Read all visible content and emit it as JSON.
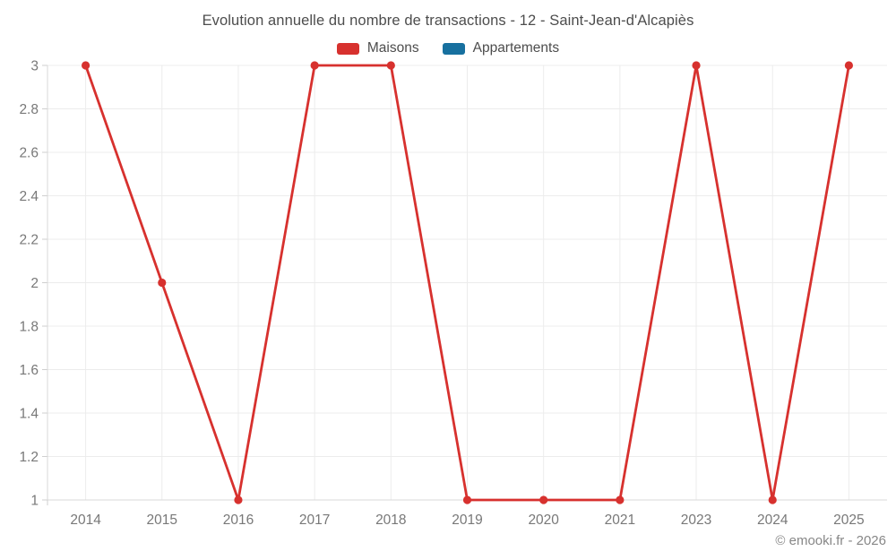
{
  "title": "Evolution annuelle du nombre de transactions - 12 - Saint-Jean-d'Alcapiès",
  "footer": "© emooki.fr - 2026",
  "legend": [
    {
      "label": "Maisons",
      "color": "#d7312e"
    },
    {
      "label": "Appartements",
      "color": "#17709f"
    }
  ],
  "colors": {
    "grid": "#ececec",
    "axis": "#d9d9d9",
    "tick": "#cfcfcf",
    "tick_label": "#787878",
    "maisons": "#d7312e",
    "appartements": "#17709f"
  },
  "chart_data": {
    "type": "line",
    "title": "Evolution annuelle du nombre de transactions - 12 - Saint-Jean-d'Alcapiès",
    "categories": [
      "2014",
      "2015",
      "2016",
      "2017",
      "2018",
      "2019",
      "2020",
      "2021",
      "2023",
      "2024",
      "2025"
    ],
    "series": [
      {
        "name": "Maisons",
        "color": "#d7312e",
        "values": [
          3,
          2,
          1,
          3,
          3,
          1,
          1,
          1,
          3,
          1,
          3
        ]
      },
      {
        "name": "Appartements",
        "color": "#17709f",
        "values": []
      }
    ],
    "xlabel": "",
    "ylabel": "",
    "ylim": [
      1,
      3
    ],
    "yticks": [
      1,
      1.2,
      1.4,
      1.6,
      1.8,
      2,
      2.2,
      2.4,
      2.6,
      2.8,
      3
    ],
    "grid": true,
    "legend_position": "top"
  }
}
